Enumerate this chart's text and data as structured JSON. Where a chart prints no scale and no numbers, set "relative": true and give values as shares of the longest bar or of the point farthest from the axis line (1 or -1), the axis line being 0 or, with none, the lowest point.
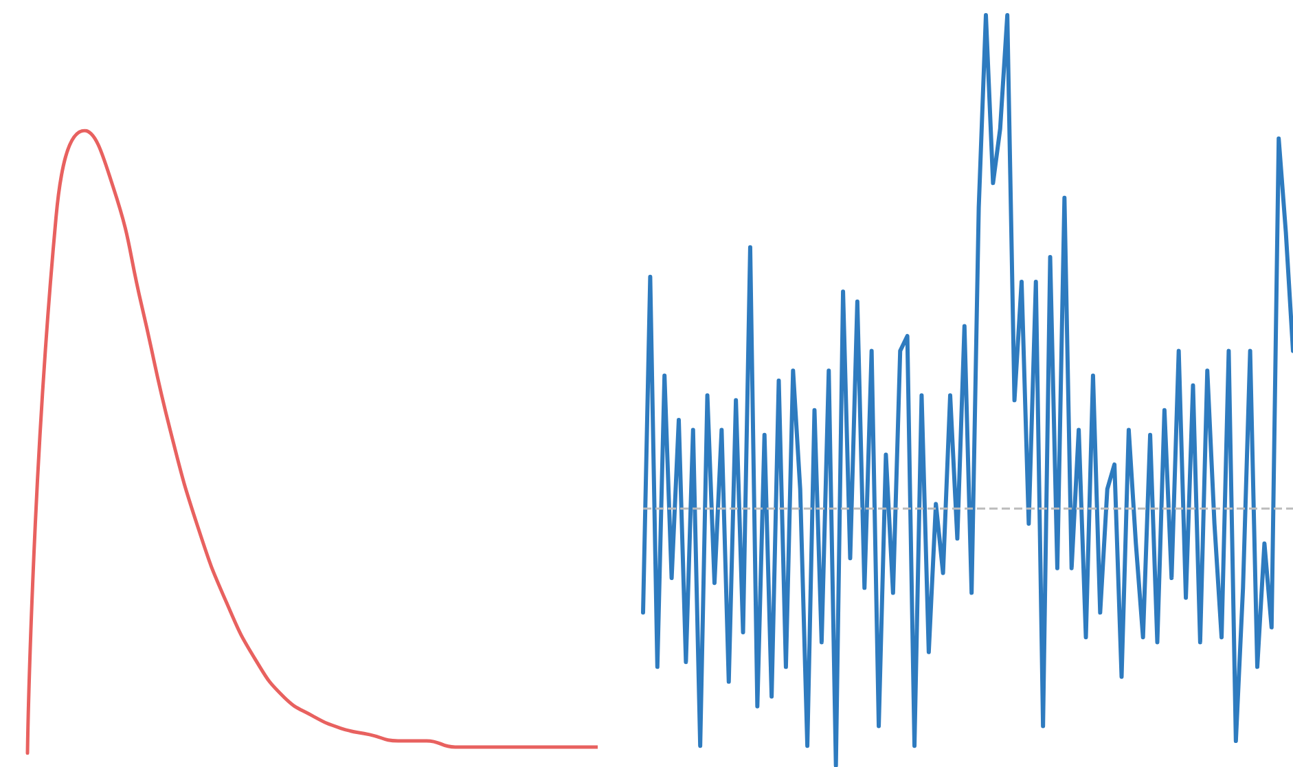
{
  "chart_data": [
    {
      "type": "line",
      "relative": true,
      "marker": "none",
      "categories": [
        null,
        null,
        null,
        null,
        null,
        null,
        null,
        null,
        null,
        null,
        null,
        null,
        null,
        null,
        null,
        null,
        null,
        null,
        null,
        null,
        null
      ],
      "series": [
        {
          "color": "#e8615f",
          "values": [
            0,
            0.86,
            1.0,
            0.91,
            0.72,
            0.52,
            0.36,
            0.24,
            0.15,
            0.09,
            0.06,
            0.04,
            0.03,
            0.02,
            0.02,
            0.01,
            0.01,
            0.01,
            0.01,
            0.01,
            0.01
          ]
        }
      ]
    },
    {
      "type": "line",
      "relative": true,
      "marker": "none",
      "categories": [
        null,
        null,
        null,
        null,
        null,
        null,
        null,
        null,
        null,
        null,
        null,
        null,
        null,
        null,
        null,
        null,
        null,
        null,
        null,
        null,
        null,
        null,
        null,
        null,
        null,
        null,
        null,
        null,
        null,
        null,
        null,
        null,
        null,
        null,
        null,
        null,
        null,
        null,
        null,
        null,
        null,
        null,
        null,
        null,
        null,
        null,
        null,
        null,
        null,
        null,
        null,
        null,
        null,
        null,
        null,
        null,
        null,
        null,
        null,
        null,
        null,
        null,
        null,
        null,
        null,
        null,
        null,
        null,
        null,
        null,
        null,
        null,
        null,
        null,
        null,
        null,
        null,
        null,
        null,
        null,
        null,
        null,
        null,
        null,
        null,
        null,
        null,
        null,
        null,
        null,
        null,
        null
      ],
      "series": [
        {
          "color": "#2e7bbf",
          "values": [
            -0.21,
            0.47,
            -0.32,
            0.27,
            -0.14,
            0.18,
            -0.31,
            0.16,
            -0.48,
            0.23,
            -0.15,
            0.16,
            -0.35,
            0.22,
            -0.25,
            0.53,
            -0.4,
            0.15,
            -0.38,
            0.26,
            -0.32,
            0.28,
            0.04,
            -0.48,
            0.2,
            -0.27,
            0.28,
            -0.52,
            0.44,
            -0.1,
            0.42,
            -0.16,
            0.32,
            -0.44,
            0.11,
            -0.17,
            0.32,
            0.35,
            -0.48,
            0.23,
            -0.29,
            0.01,
            -0.13,
            0.23,
            -0.06,
            0.37,
            -0.17,
            0.61,
            1.0,
            0.66,
            0.77,
            1.0,
            0.22,
            0.46,
            -0.03,
            0.46,
            -0.44,
            0.51,
            -0.12,
            0.63,
            -0.12,
            0.16,
            -0.26,
            0.27,
            -0.21,
            0.04,
            0.09,
            -0.34,
            0.16,
            -0.07,
            -0.26,
            0.15,
            -0.27,
            0.2,
            -0.14,
            0.32,
            -0.18,
            0.25,
            -0.27,
            0.28,
            -0.03,
            -0.26,
            0.32,
            -0.47,
            -0.16,
            0.32,
            -0.32,
            -0.07,
            -0.24,
            0.75,
            0.56,
            0.32
          ]
        }
      ],
      "ref_lines": [
        {
          "axis": "y",
          "value": 0,
          "color": "#bbbbbb",
          "line_style": "dashed"
        }
      ]
    }
  ]
}
